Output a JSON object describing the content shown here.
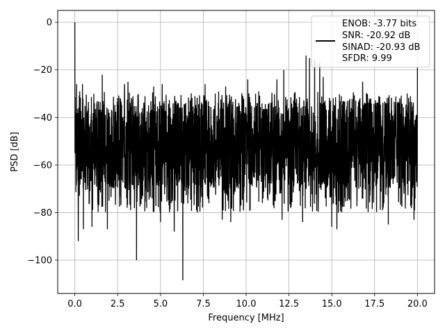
{
  "chart_data": {
    "type": "line",
    "xlabel": "Frequency [MHz]",
    "ylabel": "PSD [dB]",
    "xlim": [
      -1.0,
      21.0
    ],
    "ylim": [
      -114,
      5
    ],
    "xticks": [
      0.0,
      2.5,
      5.0,
      7.5,
      10.0,
      12.5,
      15.0,
      17.5,
      20.0
    ],
    "xtick_labels": [
      "0.0",
      "2.5",
      "5.0",
      "7.5",
      "10.0",
      "12.5",
      "15.0",
      "17.5",
      "20.0"
    ],
    "yticks": [
      0,
      -20,
      -40,
      -60,
      -80,
      -100
    ],
    "ytick_labels": [
      "0",
      "−20",
      "−40",
      "−60",
      "−80",
      "−100"
    ],
    "grid": true,
    "legend_position": "top-right",
    "legend": [
      "ENOB: -3.77 bits",
      "SNR: -20.92 dB",
      "SINAD: -20.93 dB",
      "SFDR: 9.99"
    ],
    "series": [
      {
        "color": "#000000",
        "x_range": [
          0.0,
          20.0
        ],
        "noise_floor_upper_db": -33,
        "noise_floor_lower_db": -70,
        "peaks": [
          {
            "x": 0.0,
            "y": 0.0
          },
          {
            "x": 0.1,
            "y": -26
          },
          {
            "x": 0.45,
            "y": -26
          },
          {
            "x": 1.6,
            "y": -22
          },
          {
            "x": 2.9,
            "y": -26
          },
          {
            "x": 3.1,
            "y": -25
          },
          {
            "x": 4.6,
            "y": -27
          },
          {
            "x": 5.1,
            "y": -26
          },
          {
            "x": 7.6,
            "y": -26
          },
          {
            "x": 8.8,
            "y": -27
          },
          {
            "x": 10.1,
            "y": -24
          },
          {
            "x": 11.8,
            "y": -24
          },
          {
            "x": 12.2,
            "y": -20
          },
          {
            "x": 13.5,
            "y": -14
          },
          {
            "x": 13.7,
            "y": -15
          },
          {
            "x": 14.0,
            "y": -16
          },
          {
            "x": 14.3,
            "y": -17
          },
          {
            "x": 14.5,
            "y": -23
          },
          {
            "x": 16.8,
            "y": -25
          },
          {
            "x": 20.0,
            "y": -19
          }
        ],
        "dips": [
          {
            "x": 0.2,
            "y": -92
          },
          {
            "x": 0.5,
            "y": -87
          },
          {
            "x": 1.0,
            "y": -86
          },
          {
            "x": 1.9,
            "y": -87
          },
          {
            "x": 3.6,
            "y": -100
          },
          {
            "x": 5.0,
            "y": -84
          },
          {
            "x": 5.8,
            "y": -88
          },
          {
            "x": 6.3,
            "y": -108.5
          },
          {
            "x": 8.6,
            "y": -83
          },
          {
            "x": 9.1,
            "y": -84
          },
          {
            "x": 12.1,
            "y": -83
          },
          {
            "x": 13.3,
            "y": -84
          },
          {
            "x": 15.0,
            "y": -86
          },
          {
            "x": 15.3,
            "y": -87
          },
          {
            "x": 18.3,
            "y": -85
          },
          {
            "x": 19.8,
            "y": -83
          }
        ]
      }
    ]
  }
}
